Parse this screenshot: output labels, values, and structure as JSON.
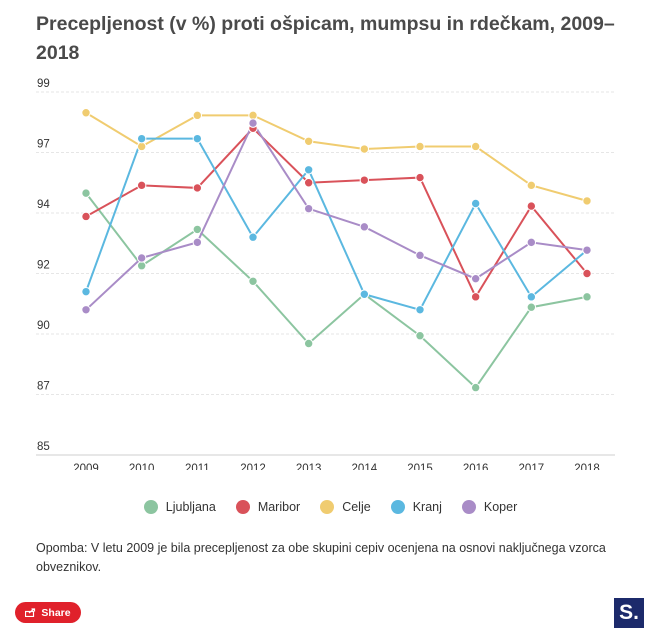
{
  "title": "Precepljenost (v %) proti ošpicam, mumpsu in rdečkam, 2009–2018",
  "note": "Opomba: V letu 2009 je bila precepljenost za obe skupini cepiv ocenjena na osnovi naključnega vzorca obveznikov.",
  "share_label": "Share",
  "logo_text": "S.",
  "chart_data": {
    "type": "line",
    "categories": [
      "2009",
      "2010",
      "2011",
      "2012",
      "2013",
      "2014",
      "2015",
      "2016",
      "2017",
      "2018"
    ],
    "y_ticks": [
      "85",
      "87",
      "90",
      "92",
      "94",
      "97",
      "99"
    ],
    "ylim": [
      85,
      99
    ],
    "grid": true,
    "legend_position": "bottom",
    "series": [
      {
        "name": "Ljubljana",
        "color": "#8cc5a0",
        "values": [
          95.1,
          92.3,
          93.7,
          91.7,
          89.3,
          91.2,
          89.6,
          87.6,
          90.7,
          91.1
        ]
      },
      {
        "name": "Maribor",
        "color": "#d9525a",
        "values": [
          94.2,
          95.4,
          95.3,
          97.6,
          95.5,
          95.6,
          95.7,
          91.1,
          94.6,
          92.0
        ]
      },
      {
        "name": "Celje",
        "color": "#f0cc70",
        "values": [
          98.2,
          96.9,
          98.1,
          98.1,
          97.1,
          96.8,
          96.9,
          96.9,
          95.4,
          94.8
        ]
      },
      {
        "name": "Kranj",
        "color": "#5bb8e0",
        "values": [
          91.3,
          97.2,
          97.2,
          93.4,
          96.0,
          91.2,
          90.6,
          94.7,
          91.1,
          92.9
        ]
      },
      {
        "name": "Koper",
        "color": "#a98cc7",
        "values": [
          90.6,
          92.6,
          93.2,
          97.8,
          94.5,
          93.8,
          92.7,
          91.8,
          93.2,
          92.9
        ]
      }
    ]
  }
}
